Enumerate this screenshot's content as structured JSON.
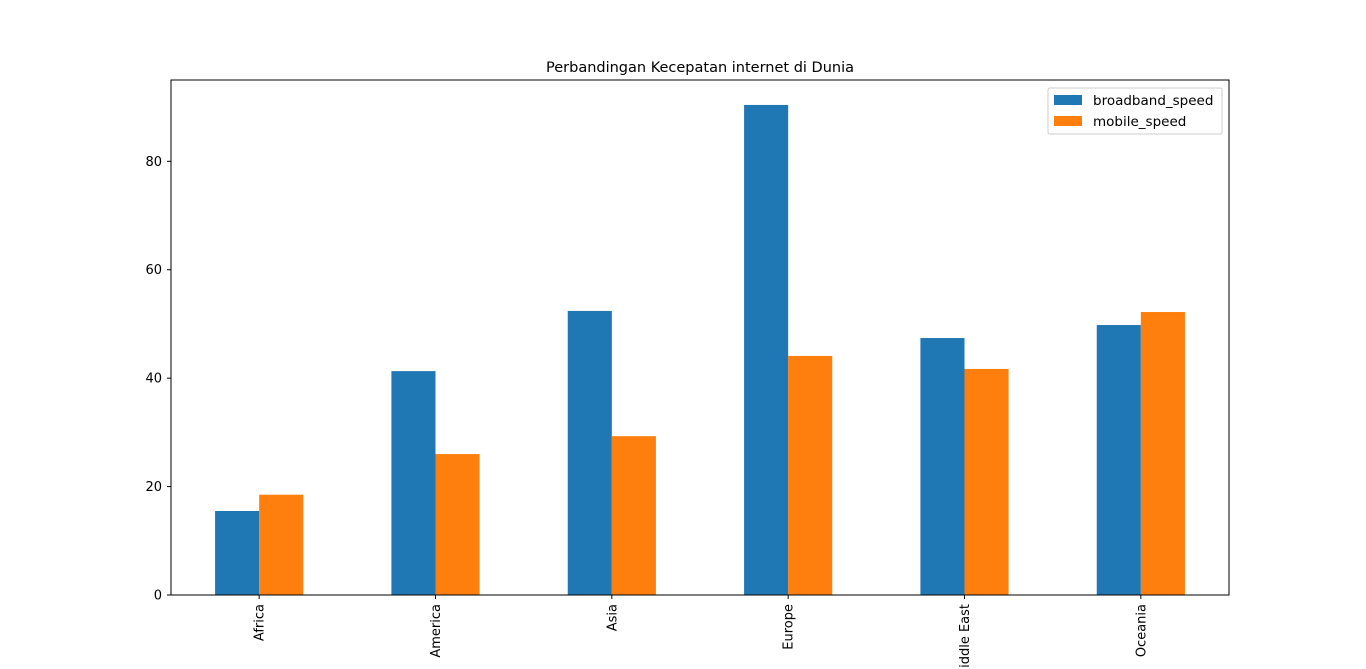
{
  "chart_data": {
    "type": "bar",
    "title": "Perbandingan Kecepatan internet di Dunia",
    "xlabel": "",
    "ylabel": "",
    "categories": [
      "Africa",
      "America",
      "Asia",
      "Europe",
      "Middle East",
      "Oceania"
    ],
    "series": [
      {
        "name": "broadband_speed",
        "color": "#1f77b4",
        "values": [
          15.5,
          41.3,
          52.4,
          90.4,
          47.4,
          49.8
        ]
      },
      {
        "name": "mobile_speed",
        "color": "#ff7f0e",
        "values": [
          18.5,
          26.0,
          29.3,
          44.1,
          41.7,
          52.2
        ]
      }
    ],
    "ylim": [
      0,
      95
    ],
    "yticks": [
      0,
      20,
      40,
      60,
      80
    ],
    "grid": false,
    "legend_position": "top-right"
  }
}
